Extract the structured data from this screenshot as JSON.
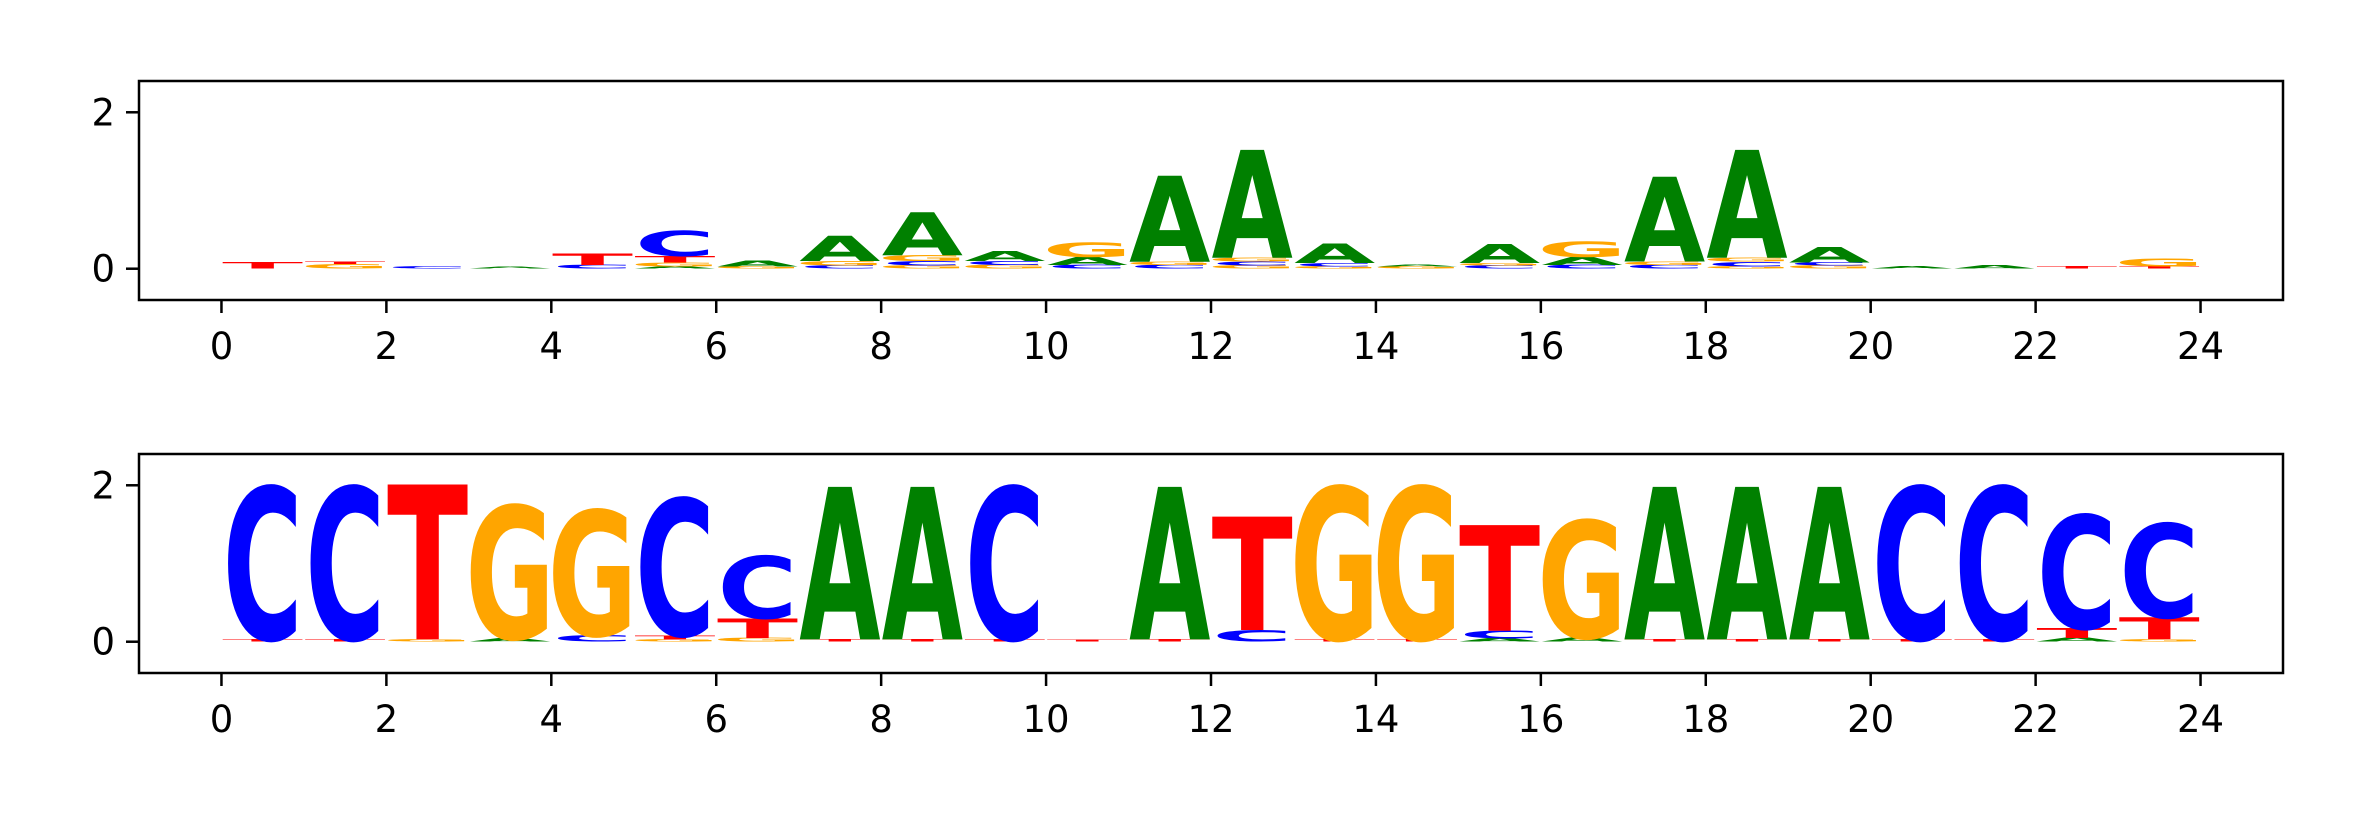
{
  "colors": {
    "A": "#008000",
    "C": "#0000ff",
    "G": "#ffa500",
    "T": "#ff0000"
  },
  "chart_data": [
    {
      "type": "sequence-logo",
      "title": "",
      "xlabel": "",
      "ylabel": "",
      "xlim": [
        -1,
        25
      ],
      "ylim": [
        -0.4,
        2.4
      ],
      "xticks": [
        "0",
        "2",
        "4",
        "6",
        "8",
        "10",
        "12",
        "14",
        "16",
        "18",
        "20",
        "22",
        "24"
      ],
      "yticks": [
        "0",
        "2"
      ],
      "positions": [
        {
          "x": 0,
          "stack": [
            [
              "T",
              0.08
            ]
          ]
        },
        {
          "x": 1,
          "stack": [
            [
              "G",
              0.06
            ],
            [
              "T",
              0.03
            ]
          ]
        },
        {
          "x": 2,
          "stack": [
            [
              "C",
              0.03
            ]
          ]
        },
        {
          "x": 3,
          "stack": [
            [
              "A",
              0.02
            ]
          ]
        },
        {
          "x": 4,
          "stack": [
            [
              "C",
              0.05
            ],
            [
              "T",
              0.15
            ]
          ]
        },
        {
          "x": 5,
          "stack": [
            [
              "A",
              0.03
            ],
            [
              "G",
              0.05
            ],
            [
              "T",
              0.08
            ],
            [
              "C",
              0.32
            ]
          ]
        },
        {
          "x": 6,
          "stack": [
            [
              "G",
              0.03
            ],
            [
              "A",
              0.07
            ]
          ]
        },
        {
          "x": 7,
          "stack": [
            [
              "C",
              0.04
            ],
            [
              "G",
              0.06
            ],
            [
              "A",
              0.32
            ]
          ]
        },
        {
          "x": 8,
          "stack": [
            [
              "G",
              0.04
            ],
            [
              "C",
              0.06
            ],
            [
              "G",
              0.07
            ],
            [
              "A",
              0.55
            ]
          ]
        },
        {
          "x": 9,
          "stack": [
            [
              "G",
              0.05
            ],
            [
              "C",
              0.05
            ],
            [
              "A",
              0.12
            ]
          ]
        },
        {
          "x": 10,
          "stack": [
            [
              "C",
              0.05
            ],
            [
              "A",
              0.1
            ],
            [
              "G",
              0.18
            ]
          ]
        },
        {
          "x": 11,
          "stack": [
            [
              "C",
              0.05
            ],
            [
              "G",
              0.04
            ],
            [
              "A",
              1.1
            ]
          ]
        },
        {
          "x": 12,
          "stack": [
            [
              "G",
              0.04
            ],
            [
              "C",
              0.05
            ],
            [
              "G",
              0.05
            ],
            [
              "A",
              1.38
            ]
          ]
        },
        {
          "x": 13,
          "stack": [
            [
              "G",
              0.03
            ],
            [
              "C",
              0.04
            ],
            [
              "A",
              0.25
            ]
          ]
        },
        {
          "x": 14,
          "stack": [
            [
              "G",
              0.03
            ],
            [
              "A",
              0.02
            ]
          ]
        },
        {
          "x": 15,
          "stack": [
            [
              "C",
              0.04
            ],
            [
              "G",
              0.03
            ],
            [
              "A",
              0.24
            ]
          ]
        },
        {
          "x": 16,
          "stack": [
            [
              "C",
              0.05
            ],
            [
              "A",
              0.1
            ],
            [
              "G",
              0.2
            ]
          ]
        },
        {
          "x": 17,
          "stack": [
            [
              "C",
              0.05
            ],
            [
              "G",
              0.04
            ],
            [
              "A",
              1.08
            ]
          ]
        },
        {
          "x": 18,
          "stack": [
            [
              "G",
              0.03
            ],
            [
              "C",
              0.06
            ],
            [
              "G",
              0.05
            ],
            [
              "A",
              1.38
            ]
          ]
        },
        {
          "x": 19,
          "stack": [
            [
              "G",
              0.04
            ],
            [
              "C",
              0.04
            ],
            [
              "A",
              0.2
            ]
          ]
        },
        {
          "x": 20,
          "stack": [
            [
              "A",
              0.03
            ]
          ]
        },
        {
          "x": 21,
          "stack": [
            [
              "A",
              0.04
            ]
          ]
        },
        {
          "x": 22,
          "stack": [
            [
              "T",
              0.03
            ]
          ]
        },
        {
          "x": 23,
          "stack": [
            [
              "T",
              0.03
            ],
            [
              "G",
              0.1
            ]
          ]
        }
      ]
    },
    {
      "type": "sequence-logo",
      "title": "",
      "xlabel": "",
      "ylabel": "",
      "xlim": [
        -1,
        25
      ],
      "ylim": [
        -0.4,
        2.4
      ],
      "xticks": [
        "0",
        "2",
        "4",
        "6",
        "8",
        "10",
        "12",
        "14",
        "16",
        "18",
        "20",
        "22",
        "24"
      ],
      "yticks": [
        "0",
        "2"
      ],
      "positions": [
        {
          "x": 0,
          "stack": [
            [
              "T",
              0.03
            ],
            [
              "C",
              1.95
            ]
          ]
        },
        {
          "x": 1,
          "stack": [
            [
              "T",
              0.03
            ],
            [
              "C",
              1.95
            ]
          ]
        },
        {
          "x": 2,
          "stack": [
            [
              "G",
              0.03
            ],
            [
              "T",
              1.98
            ]
          ]
        },
        {
          "x": 3,
          "stack": [
            [
              "A",
              0.04
            ],
            [
              "G",
              1.7
            ]
          ]
        },
        {
          "x": 4,
          "stack": [
            [
              "C",
              0.08
            ],
            [
              "G",
              1.6
            ]
          ]
        },
        {
          "x": 5,
          "stack": [
            [
              "G",
              0.03
            ],
            [
              "T",
              0.05
            ],
            [
              "C",
              1.75
            ]
          ]
        },
        {
          "x": 6,
          "stack": [
            [
              "G",
              0.05
            ],
            [
              "T",
              0.25
            ],
            [
              "C",
              0.8
            ]
          ]
        },
        {
          "x": 7,
          "stack": [
            [
              "T",
              0.03
            ],
            [
              "A",
              1.95
            ]
          ]
        },
        {
          "x": 8,
          "stack": [
            [
              "T",
              0.03
            ],
            [
              "A",
              1.95
            ]
          ]
        },
        {
          "x": 9,
          "stack": [
            [
              "T",
              0.03
            ],
            [
              "C",
              1.95
            ]
          ]
        },
        {
          "x": 10,
          "stack": [
            [
              "T",
              0.02
            ]
          ]
        },
        {
          "x": 11,
          "stack": [
            [
              "T",
              0.03
            ],
            [
              "A",
              1.95
            ]
          ]
        },
        {
          "x": 12,
          "stack": [
            [
              "C",
              0.15
            ],
            [
              "T",
              1.45
            ]
          ]
        },
        {
          "x": 13,
          "stack": [
            [
              "T",
              0.03
            ],
            [
              "G",
              1.95
            ]
          ]
        },
        {
          "x": 14,
          "stack": [
            [
              "T",
              0.03
            ],
            [
              "G",
              1.95
            ]
          ]
        },
        {
          "x": 15,
          "stack": [
            [
              "A",
              0.04
            ],
            [
              "C",
              0.1
            ],
            [
              "T",
              1.35
            ]
          ]
        },
        {
          "x": 16,
          "stack": [
            [
              "A",
              0.05
            ],
            [
              "G",
              1.5
            ]
          ]
        },
        {
          "x": 17,
          "stack": [
            [
              "T",
              0.03
            ],
            [
              "A",
              1.95
            ]
          ]
        },
        {
          "x": 18,
          "stack": [
            [
              "T",
              0.03
            ],
            [
              "A",
              1.95
            ]
          ]
        },
        {
          "x": 19,
          "stack": [
            [
              "T",
              0.03
            ],
            [
              "A",
              1.95
            ]
          ]
        },
        {
          "x": 20,
          "stack": [
            [
              "T",
              0.03
            ],
            [
              "C",
              1.95
            ]
          ]
        },
        {
          "x": 21,
          "stack": [
            [
              "T",
              0.03
            ],
            [
              "C",
              1.95
            ]
          ]
        },
        {
          "x": 22,
          "stack": [
            [
              "A",
              0.05
            ],
            [
              "T",
              0.12
            ],
            [
              "C",
              1.45
            ]
          ]
        },
        {
          "x": 23,
          "stack": [
            [
              "G",
              0.03
            ],
            [
              "T",
              0.28
            ],
            [
              "C",
              1.2
            ]
          ]
        }
      ]
    }
  ]
}
